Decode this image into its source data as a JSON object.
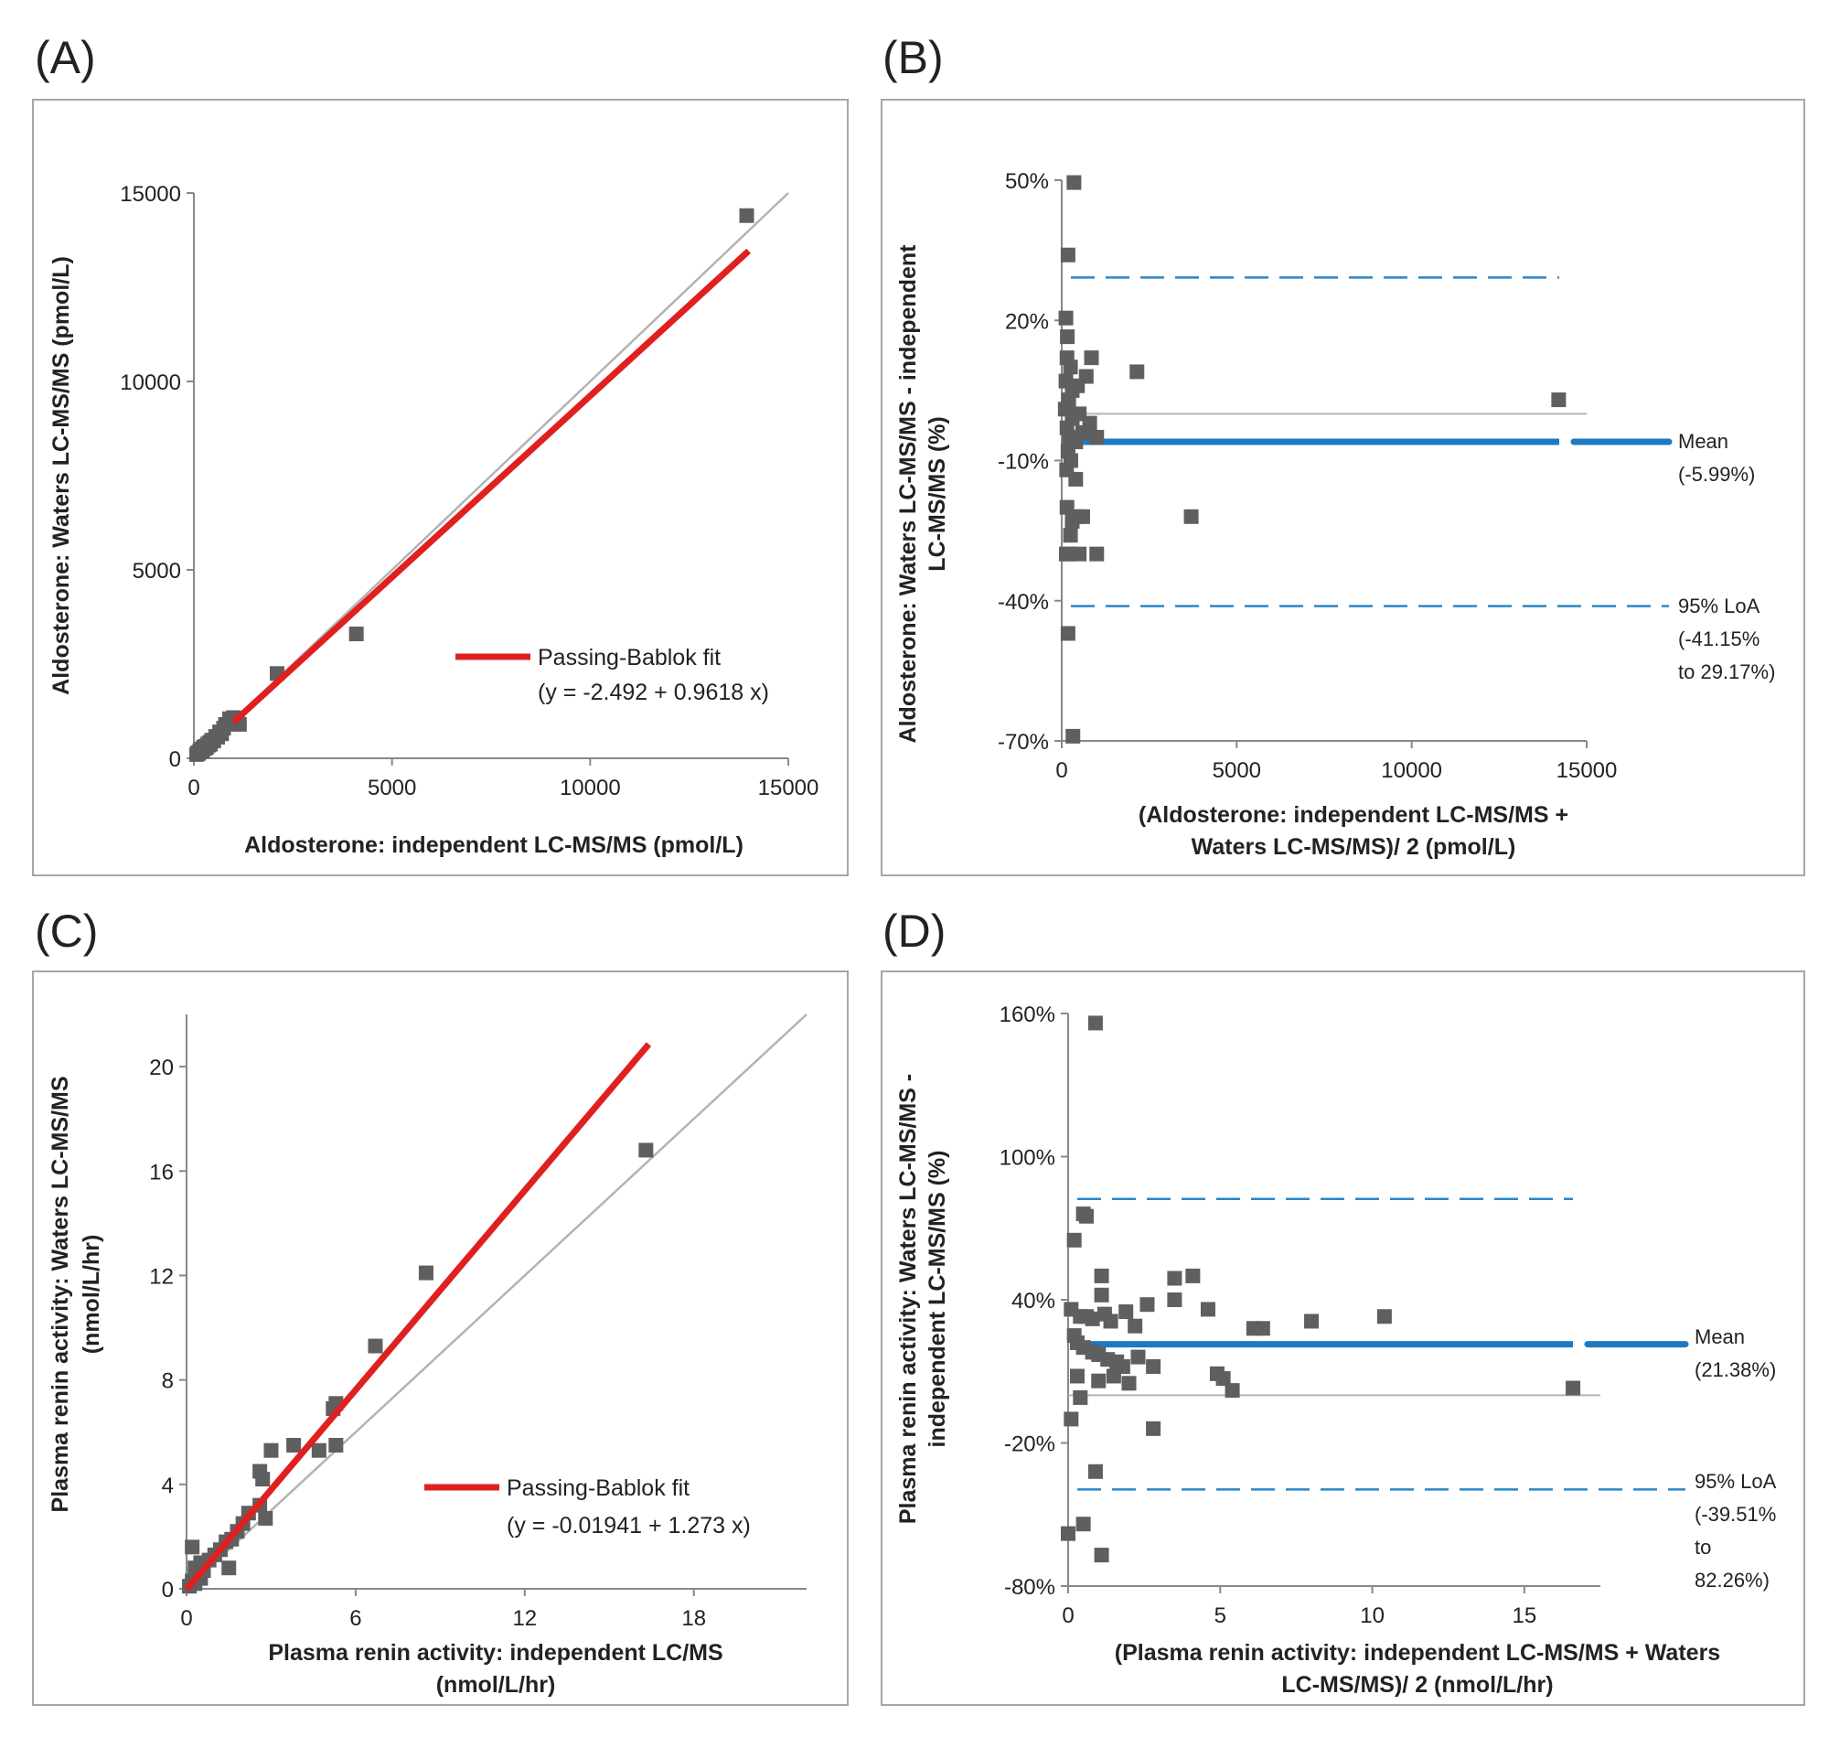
{
  "colors": {
    "fit": "#e02020",
    "identity": "#b3b3b3",
    "point": "#5f5f5f",
    "mean": "#1f78c1",
    "loa": "#2a86c8",
    "frame": "#a6a6a6"
  },
  "chart_data": [
    {
      "id": "A",
      "panel_label": "(A)",
      "type": "scatter",
      "xlabel": "Aldosterone: independent LC-MS/MS (pmol/L)",
      "ylabel": "Aldosterone: Waters LC-MS/MS (pmol/L)",
      "xlim": [
        0,
        15000
      ],
      "ylim": [
        0,
        15000
      ],
      "xticks": [
        "0",
        "5000",
        "10000",
        "15000"
      ],
      "yticks": [
        "0",
        "5000",
        "10000",
        "15000"
      ],
      "identity_line": [
        [
          0,
          0
        ],
        [
          15000,
          15000
        ]
      ],
      "fit": {
        "label": "Passing-Bablok fit",
        "equation": "(y = -2.492 + 0.9618 x)",
        "intercept": -2.492,
        "slope": 0.9618,
        "x_range": [
          1000,
          14000
        ]
      },
      "points": [
        [
          70,
          100
        ],
        [
          100,
          150
        ],
        [
          120,
          130
        ],
        [
          150,
          200
        ],
        [
          180,
          180
        ],
        [
          200,
          250
        ],
        [
          220,
          200
        ],
        [
          250,
          300
        ],
        [
          280,
          260
        ],
        [
          300,
          320
        ],
        [
          320,
          290
        ],
        [
          350,
          380
        ],
        [
          380,
          350
        ],
        [
          400,
          420
        ],
        [
          420,
          380
        ],
        [
          450,
          480
        ],
        [
          500,
          460
        ],
        [
          550,
          580
        ],
        [
          600,
          560
        ],
        [
          650,
          700
        ],
        [
          700,
          650
        ],
        [
          750,
          800
        ],
        [
          800,
          900
        ],
        [
          900,
          1050
        ],
        [
          950,
          1000
        ],
        [
          1000,
          1080
        ],
        [
          1100,
          1000
        ],
        [
          1150,
          900
        ],
        [
          2100,
          2250
        ],
        [
          4100,
          3300
        ],
        [
          13950,
          14400
        ]
      ]
    },
    {
      "id": "B",
      "panel_label": "(B)",
      "type": "scatter",
      "xlabel": "(Aldosterone: independent LC-MS/MS + Waters LC-MS/MS)/ 2 (pmol/L)",
      "xlabel_lines": [
        "(Aldosterone: independent LC-MS/MS +",
        "Waters LC-MS/MS)/ 2 (pmol/L)"
      ],
      "ylabel": "Aldosterone: Waters LC-MS/MS - independent LC-MS/MS (%)",
      "ylabel_lines": [
        "Aldosterone: Waters LC-MS/MS - independent",
        "LC-MS/MS (%)"
      ],
      "xlim": [
        0,
        15000
      ],
      "ylim": [
        -70,
        50
      ],
      "xticks": [
        "0",
        "5000",
        "10000",
        "15000"
      ],
      "yticks": [
        "50%",
        "20%",
        "-10%",
        "-40%",
        "-70%"
      ],
      "zero_line": 0,
      "mean": {
        "value": -5.99,
        "label": "Mean",
        "value_label": "(-5.99%)"
      },
      "loa": {
        "lower": -41.15,
        "upper": 29.17,
        "label": "95% LoA",
        "range_lines": [
          "(-41.15%",
          "to 29.17%)"
        ]
      },
      "points": [
        [
          350,
          49.5
        ],
        [
          180,
          34
        ],
        [
          120,
          20.5
        ],
        [
          160,
          16.5
        ],
        [
          150,
          12
        ],
        [
          250,
          10
        ],
        [
          120,
          7
        ],
        [
          300,
          5
        ],
        [
          450,
          6
        ],
        [
          700,
          8
        ],
        [
          850,
          12
        ],
        [
          2150,
          9
        ],
        [
          200,
          3
        ],
        [
          100,
          1
        ],
        [
          300,
          -1
        ],
        [
          500,
          0
        ],
        [
          150,
          -3
        ],
        [
          220,
          -5
        ],
        [
          400,
          -6
        ],
        [
          600,
          -4
        ],
        [
          800,
          -2
        ],
        [
          1000,
          -5
        ],
        [
          180,
          -8
        ],
        [
          260,
          -10
        ],
        [
          140,
          -12
        ],
        [
          400,
          -14
        ],
        [
          150,
          -20
        ],
        [
          300,
          -23
        ],
        [
          450,
          -22
        ],
        [
          600,
          -22
        ],
        [
          250,
          -26
        ],
        [
          3700,
          -22
        ],
        [
          130,
          -30
        ],
        [
          220,
          -30
        ],
        [
          500,
          -30
        ],
        [
          1000,
          -30
        ],
        [
          180,
          -47
        ],
        [
          320,
          -69
        ],
        [
          14200,
          3
        ]
      ]
    },
    {
      "id": "C",
      "panel_label": "(C)",
      "type": "scatter",
      "xlabel": "Plasma renin activity: independent LC/MS (nmol/L/hr)",
      "xlabel_lines": [
        "Plasma renin activity: independent LC/MS",
        "(nmol/L/hr)"
      ],
      "ylabel": "Plasma renin activity: Waters LC-MS/MS (nmol/L/hr)",
      "ylabel_lines": [
        "Plasma renin activity: Waters LC-MS/MS",
        "(nmol/L/hr)"
      ],
      "xlim": [
        0,
        22
      ],
      "ylim": [
        0,
        22
      ],
      "xticks": [
        "0",
        "6",
        "12",
        "18"
      ],
      "yticks": [
        "0",
        "4",
        "8",
        "12",
        "16",
        "20"
      ],
      "identity_line": [
        [
          0,
          0
        ],
        [
          22,
          22
        ]
      ],
      "fit": {
        "label": "Passing-Bablok fit",
        "equation": "(y = -0.01941 + 1.273 x)",
        "intercept": -0.01941,
        "slope": 1.273,
        "x_range": [
          0,
          16.4
        ]
      },
      "points": [
        [
          0.1,
          0.1
        ],
        [
          0.2,
          0.3
        ],
        [
          0.3,
          0.2
        ],
        [
          0.4,
          0.5
        ],
        [
          0.5,
          0.4
        ],
        [
          0.6,
          0.7
        ],
        [
          0.2,
          1.6
        ],
        [
          0.3,
          0.8
        ],
        [
          0.5,
          1.0
        ],
        [
          0.8,
          1.1
        ],
        [
          1.0,
          1.3
        ],
        [
          1.2,
          1.5
        ],
        [
          1.4,
          1.8
        ],
        [
          1.6,
          1.9
        ],
        [
          1.8,
          2.2
        ],
        [
          2.0,
          2.5
        ],
        [
          2.2,
          2.9
        ],
        [
          2.6,
          3.2
        ],
        [
          1.5,
          0.8
        ],
        [
          2.8,
          2.7
        ],
        [
          2.6,
          4.5
        ],
        [
          2.7,
          4.2
        ],
        [
          3.0,
          5.3
        ],
        [
          3.8,
          5.5
        ],
        [
          4.7,
          5.3
        ],
        [
          5.2,
          6.9
        ],
        [
          5.3,
          7.1
        ],
        [
          5.3,
          5.5
        ],
        [
          6.7,
          9.3
        ],
        [
          8.5,
          12.1
        ],
        [
          16.3,
          16.8
        ]
      ]
    },
    {
      "id": "D",
      "panel_label": "(D)",
      "type": "scatter",
      "xlabel": "(Plasma renin activity: independent LC-MS/MS + Waters LC-MS/MS)/ 2 (nmol/L/hr)",
      "xlabel_lines": [
        "(Plasma renin activity: independent LC-MS/MS + Waters",
        "LC-MS/MS)/ 2 (nmol/L/hr)"
      ],
      "ylabel": "Plasma renin activity: Waters LC-MS/MS - independent LC-MS/MS (%)",
      "ylabel_lines": [
        "Plasma renin activity: Waters LC-MS/MS -",
        "independent LC-MS/MS (%)"
      ],
      "xlim": [
        0,
        17.5
      ],
      "ylim": [
        -80,
        160
      ],
      "xticks": [
        "0",
        "5",
        "10",
        "15"
      ],
      "yticks": [
        "160%",
        "100%",
        "40%",
        "-20%",
        "-80%"
      ],
      "zero_line": 0,
      "mean": {
        "value": 21.38,
        "label": "Mean",
        "value_label": "(21.38%)"
      },
      "loa": {
        "lower": -39.51,
        "upper": 82.26,
        "label": "95% LoA",
        "range_lines": [
          "(-39.51%",
          "to",
          "82.26%)"
        ]
      },
      "points": [
        [
          0.9,
          156
        ],
        [
          0.5,
          76
        ],
        [
          0.6,
          75
        ],
        [
          0.2,
          65
        ],
        [
          1.1,
          50
        ],
        [
          1.1,
          42
        ],
        [
          0.1,
          36
        ],
        [
          0.4,
          33
        ],
        [
          0.6,
          33
        ],
        [
          0.8,
          32
        ],
        [
          1.2,
          34
        ],
        [
          1.4,
          31
        ],
        [
          1.9,
          35
        ],
        [
          2.2,
          29
        ],
        [
          2.6,
          38
        ],
        [
          3.5,
          40
        ],
        [
          3.5,
          49
        ],
        [
          4.1,
          50
        ],
        [
          4.6,
          36
        ],
        [
          6.1,
          28
        ],
        [
          6.4,
          28
        ],
        [
          8.0,
          31
        ],
        [
          10.4,
          33
        ],
        [
          0.2,
          25
        ],
        [
          0.3,
          22
        ],
        [
          0.5,
          20
        ],
        [
          0.8,
          18
        ],
        [
          1.0,
          17
        ],
        [
          1.3,
          15
        ],
        [
          1.6,
          14
        ],
        [
          1.8,
          12
        ],
        [
          2.3,
          16
        ],
        [
          2.8,
          12
        ],
        [
          0.3,
          8
        ],
        [
          1.0,
          6
        ],
        [
          1.5,
          8
        ],
        [
          2.0,
          5
        ],
        [
          4.9,
          9
        ],
        [
          5.1,
          7
        ],
        [
          5.4,
          2
        ],
        [
          0.4,
          -1
        ],
        [
          0.1,
          -10
        ],
        [
          2.8,
          -14
        ],
        [
          0.9,
          -32
        ],
        [
          0.5,
          -54
        ],
        [
          0.0,
          -58
        ],
        [
          1.1,
          -67
        ],
        [
          16.6,
          3
        ]
      ]
    }
  ]
}
